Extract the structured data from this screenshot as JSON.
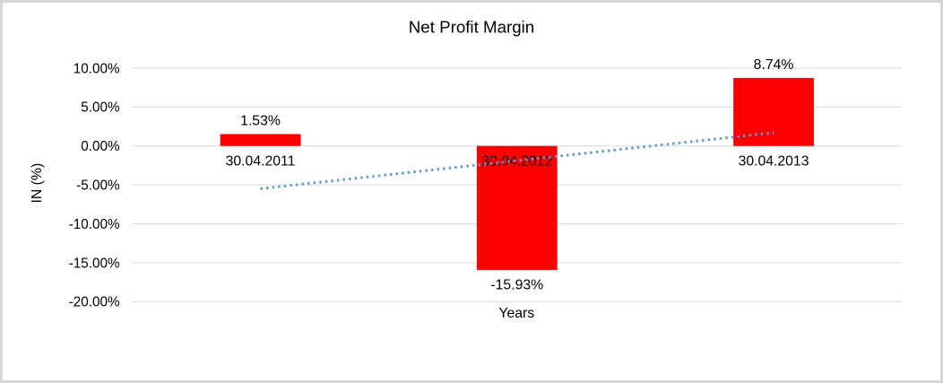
{
  "chart": {
    "title": "Net Profit Margin",
    "x_axis_title": "Years",
    "y_axis_title": "IN (%)"
  },
  "chart_data": {
    "type": "bar",
    "title": "Net Profit Margin",
    "xlabel": "Years",
    "ylabel": "IN (%)",
    "categories": [
      "30.04.2011",
      "30.04.2012",
      "30.04.2013"
    ],
    "values": [
      1.53,
      -15.93,
      8.74
    ],
    "data_labels": [
      "1.53%",
      "-15.93%",
      "8.74%"
    ],
    "bar_color": "#ff0000",
    "ylim": [
      -20,
      10
    ],
    "y_ticks": {
      "values": [
        10,
        5,
        0,
        -5,
        -10,
        -15,
        -20
      ],
      "labels": [
        "10.00%",
        "5.00%",
        "0.00%",
        "-5.00%",
        "-10.00%",
        "-15.00%",
        "-20.00%"
      ]
    },
    "grid": "horizontal",
    "legend": "none",
    "gridline_color": "#d9d9d9",
    "trendline": {
      "type": "linear",
      "style": "dotted",
      "color": "#5b9bd5",
      "start_value": -5.49,
      "end_value": 1.71
    }
  }
}
